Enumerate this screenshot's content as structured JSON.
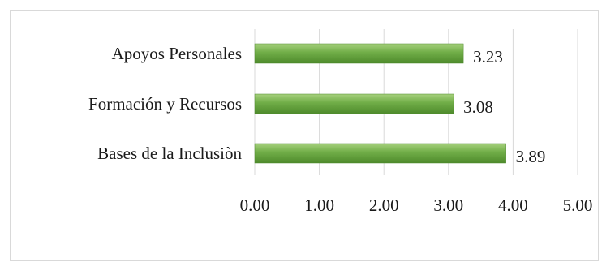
{
  "chart_data": {
    "type": "bar",
    "orientation": "horizontal",
    "categories": [
      "Apoyos Personales",
      "Formación y Recursos",
      "Bases de la Inclusiòn"
    ],
    "values": [
      3.23,
      3.08,
      3.89
    ],
    "data_labels": [
      "3.23",
      "3.08",
      "3.89"
    ],
    "x_ticks": [
      "0.00",
      "1.00",
      "2.00",
      "3.00",
      "4.00",
      "5.00"
    ],
    "xlim": [
      0,
      5
    ],
    "grid": true,
    "legend": "none",
    "bar_color": "#70ad47",
    "bar_highlight": "#a6d07d",
    "bar_shade": "#4e8a2c"
  }
}
